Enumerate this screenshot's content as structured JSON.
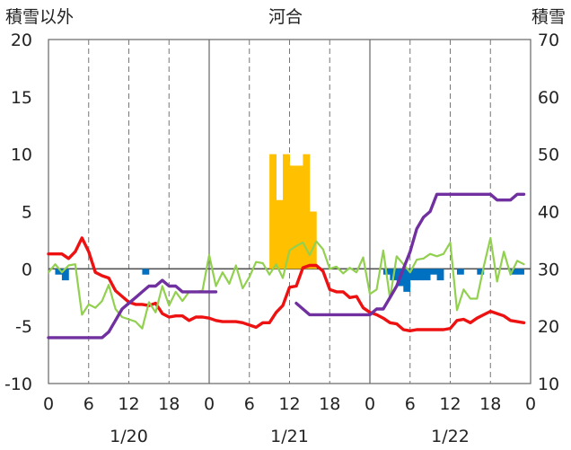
{
  "chart_data": {
    "type": "line",
    "title": "河合",
    "y_left_label": "積雪以外",
    "y_right_label": "積雪",
    "y_left_range": [
      -10,
      20
    ],
    "y_left_ticks": [
      "-10",
      "-5",
      "0",
      "5",
      "10",
      "15",
      "20"
    ],
    "y_right_range": [
      10,
      70
    ],
    "y_right_ticks": [
      "10",
      "20",
      "30",
      "40",
      "50",
      "60",
      "70"
    ],
    "x_range_hours": [
      0,
      72
    ],
    "x_tick_labels": [
      "0",
      "6",
      "12",
      "18",
      "0",
      "6",
      "12",
      "18",
      "0",
      "6",
      "12",
      "18",
      "0"
    ],
    "date_labels": [
      "1/20",
      "1/21",
      "1/22"
    ],
    "grid": "dashed vertical lines every 6 hours, solid at day boundaries",
    "colors": {
      "temperature": "#ee1111",
      "dewpoint": "#92d050",
      "snow_depth": "#7030a0",
      "snowfall": "#ffc000",
      "snow_decrease": "#0070c0"
    },
    "series": [
      {
        "key": "temperature",
        "axis": "left",
        "type": "line",
        "x": [
          0,
          1,
          2,
          3,
          4,
          5,
          6,
          7,
          8,
          9,
          10,
          11,
          12,
          13,
          14,
          15,
          16,
          17,
          18,
          19,
          20,
          21,
          22,
          23,
          24,
          25,
          26,
          27,
          28,
          29,
          30,
          31,
          32,
          33,
          34,
          35,
          36,
          37,
          38,
          39,
          40,
          41,
          42,
          43,
          44,
          45,
          46,
          47,
          48,
          49,
          50,
          51,
          52,
          53,
          54,
          55,
          56,
          57,
          58,
          59,
          60,
          61,
          62,
          63,
          64,
          65,
          66,
          67,
          68,
          69,
          70,
          71
        ],
        "y": [
          1.3,
          1.3,
          1.3,
          0.9,
          1.5,
          2.7,
          1.5,
          -0.3,
          -0.6,
          -0.8,
          -1.9,
          -2.4,
          -2.9,
          -3.1,
          -3.1,
          -3.2,
          -3.0,
          -3.9,
          -4.2,
          -4.1,
          -4.1,
          -4.5,
          -4.2,
          -4.2,
          -4.3,
          -4.5,
          -4.6,
          -4.6,
          -4.6,
          -4.7,
          -4.9,
          -5.1,
          -4.7,
          -4.7,
          -3.8,
          -3.2,
          -1.6,
          -1.5,
          0.1,
          0.3,
          0.3,
          -0.2,
          -1.8,
          -2.0,
          -2.0,
          -2.5,
          -2.4,
          -3.4,
          -3.8,
          -4.0,
          -4.3,
          -4.7,
          -4.8,
          -5.3,
          -5.4,
          -5.3,
          -5.3,
          -5.3,
          -5.3,
          -5.3,
          -5.2,
          -4.5,
          -4.4,
          -4.7,
          -4.3,
          -4.0,
          -3.7,
          -3.9,
          -4.1,
          -4.5,
          -4.6,
          -4.7
        ]
      },
      {
        "key": "dewpoint",
        "axis": "left",
        "type": "line",
        "x": [
          0,
          1,
          2,
          3,
          4,
          5,
          6,
          7,
          8,
          9,
          10,
          11,
          12,
          13,
          14,
          15,
          16,
          17,
          18,
          19,
          20,
          21,
          22,
          23,
          24,
          25,
          26,
          27,
          28,
          29,
          30,
          31,
          32,
          33,
          34,
          35,
          36,
          37,
          38,
          39,
          40,
          41,
          42,
          43,
          44,
          45,
          46,
          47,
          48,
          49,
          50,
          51,
          52,
          53,
          54,
          55,
          56,
          57,
          58,
          59,
          60,
          61,
          62,
          63,
          64,
          65,
          66,
          67,
          68,
          69,
          70,
          71
        ],
        "y": [
          -0.3,
          0.4,
          -0.3,
          0.3,
          0.4,
          -4.0,
          -3.1,
          -3.4,
          -2.8,
          -1.4,
          -3.5,
          -4.2,
          -4.4,
          -4.6,
          -5.2,
          -2.9,
          -3.8,
          -1.5,
          -3.2,
          -2.0,
          -2.8,
          -2.0,
          -2.0,
          -1.9,
          1.2,
          -1.5,
          -0.3,
          -1.3,
          0.3,
          -1.7,
          -0.7,
          0.6,
          0.5,
          -0.5,
          0.4,
          -0.8,
          1.6,
          2.0,
          2.3,
          1.2,
          2.4,
          1.7,
          0.0,
          0.2,
          -0.4,
          0.1,
          -0.3,
          1.0,
          -2.2,
          -1.8,
          1.6,
          -2.6,
          1.1,
          0.4,
          -0.3,
          0.8,
          0.9,
          1.3,
          1.1,
          1.3,
          2.3,
          -3.6,
          -1.8,
          -2.6,
          -2.6,
          0.2,
          2.7,
          -1.1,
          1.5,
          -0.5,
          0.7,
          0.4
        ]
      },
      {
        "key": "snow_depth",
        "axis": "right",
        "type": "line",
        "x": [
          0,
          1,
          2,
          3,
          4,
          5,
          6,
          7,
          8,
          9,
          10,
          11,
          12,
          13,
          14,
          15,
          16,
          17,
          18,
          19,
          20,
          21,
          22,
          23,
          24,
          25,
          null,
          37,
          38,
          39,
          40,
          41,
          42,
          43,
          44,
          45,
          46,
          47,
          48,
          49,
          50,
          51,
          52,
          53,
          54,
          55,
          56,
          57,
          58,
          59,
          60,
          61,
          62,
          63,
          64,
          65,
          66,
          67,
          68,
          69,
          70,
          71
        ],
        "y": [
          18,
          18,
          18,
          18,
          18,
          18,
          18,
          18,
          18,
          19,
          21,
          23,
          24,
          25,
          26,
          27,
          27,
          28,
          27,
          27,
          26,
          26,
          26,
          26,
          26,
          26,
          null,
          24,
          23,
          22,
          22,
          22,
          22,
          22,
          22,
          22,
          22,
          22,
          22,
          23,
          23,
          25,
          27,
          30,
          33,
          37,
          39,
          40,
          43,
          43,
          43,
          43,
          43,
          43,
          43,
          43,
          43,
          42,
          42,
          42,
          43,
          43
        ]
      },
      {
        "key": "snowfall",
        "axis": "left",
        "type": "bar",
        "x": [
          33,
          34,
          35,
          36,
          37,
          38,
          39,
          40
        ],
        "y": [
          10,
          6,
          10,
          9,
          9,
          10,
          5,
          0
        ]
      },
      {
        "key": "snow_decrease",
        "axis": "left",
        "type": "bar",
        "x": [
          1,
          2,
          14,
          50,
          51,
          52,
          53,
          54,
          55,
          56,
          57,
          58,
          61,
          64,
          69,
          70
        ],
        "y": [
          -0.5,
          -1,
          -0.5,
          -0.5,
          -1,
          -1.5,
          -2,
          -1,
          -1,
          -1,
          -0.5,
          -1,
          -0.5,
          -0.5,
          -0.5,
          -0.5
        ]
      }
    ]
  }
}
